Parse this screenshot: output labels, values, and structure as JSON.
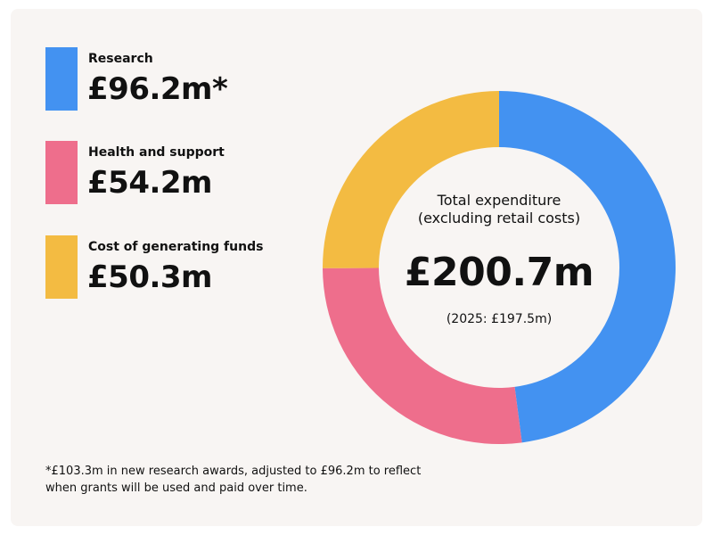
{
  "chart_data": {
    "type": "pie",
    "variant": "donut",
    "categories": [
      "Research",
      "Health and support",
      "Cost of generating funds"
    ],
    "values": [
      96.2,
      54.2,
      50.3
    ],
    "value_labels": [
      "£96.2m*",
      "£54.2m",
      "£50.3m"
    ],
    "colors": [
      "#4392f1",
      "#ee6e8c",
      "#f3bb42"
    ],
    "center": {
      "caption_line1": "Total expenditure",
      "caption_line2": "(excluding retail costs)",
      "total": "£200.7m",
      "prior": "(2025: £197.5m)"
    },
    "legend_position": "left",
    "footnote": {
      "line1": "*£103.3m in new research awards, adjusted to £96.2m to reflect",
      "line2": "when grants will be used and paid over time."
    }
  }
}
